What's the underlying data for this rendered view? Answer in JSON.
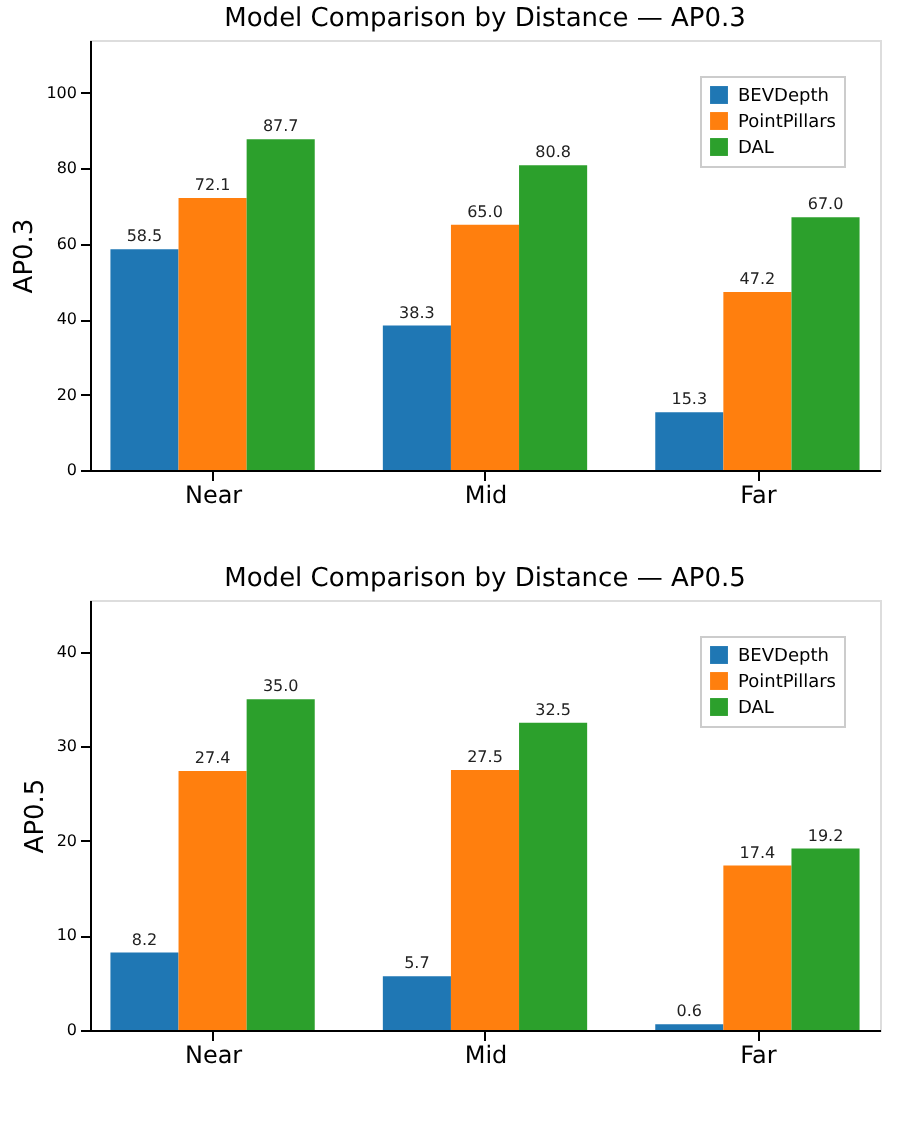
{
  "chart_data": [
    {
      "type": "bar",
      "title": "Model Comparison by Distance — AP0.3",
      "ylabel": "AP0.3",
      "categories": [
        "Near",
        "Mid",
        "Far"
      ],
      "series": [
        {
          "name": "BEVDepth",
          "color": "#1f77b4",
          "values": [
            58.5,
            38.3,
            15.3
          ],
          "value_labels": [
            "58.5",
            "38.3",
            "15.3"
          ]
        },
        {
          "name": "PointPillars",
          "color": "#ff7f0e",
          "values": [
            72.1,
            65.0,
            47.2
          ],
          "value_labels": [
            "72.1",
            "65.0",
            "47.2"
          ]
        },
        {
          "name": "DAL",
          "color": "#2ca02c",
          "values": [
            87.7,
            80.8,
            67.0
          ],
          "value_labels": [
            "87.7",
            "80.8",
            "67.0"
          ]
        }
      ],
      "ylim": [
        0,
        114
      ],
      "yticks": [
        0,
        20,
        40,
        60,
        80,
        100
      ],
      "legend": "top right",
      "grid": false
    },
    {
      "type": "bar",
      "title": "Model Comparison by Distance — AP0.5",
      "ylabel": "AP0.5",
      "categories": [
        "Near",
        "Mid",
        "Far"
      ],
      "series": [
        {
          "name": "BEVDepth",
          "color": "#1f77b4",
          "values": [
            8.2,
            5.7,
            0.6
          ],
          "value_labels": [
            "8.2",
            "5.7",
            "0.6"
          ]
        },
        {
          "name": "PointPillars",
          "color": "#ff7f0e",
          "values": [
            27.4,
            27.5,
            17.4
          ],
          "value_labels": [
            "27.4",
            "27.5",
            "17.4"
          ]
        },
        {
          "name": "DAL",
          "color": "#2ca02c",
          "values": [
            35.0,
            32.5,
            19.2
          ],
          "value_labels": [
            "35.0",
            "32.5",
            "19.2"
          ]
        }
      ],
      "ylim": [
        0,
        45.5
      ],
      "yticks": [
        0,
        10,
        20,
        30,
        40
      ],
      "legend": "top right",
      "grid": false
    }
  ]
}
